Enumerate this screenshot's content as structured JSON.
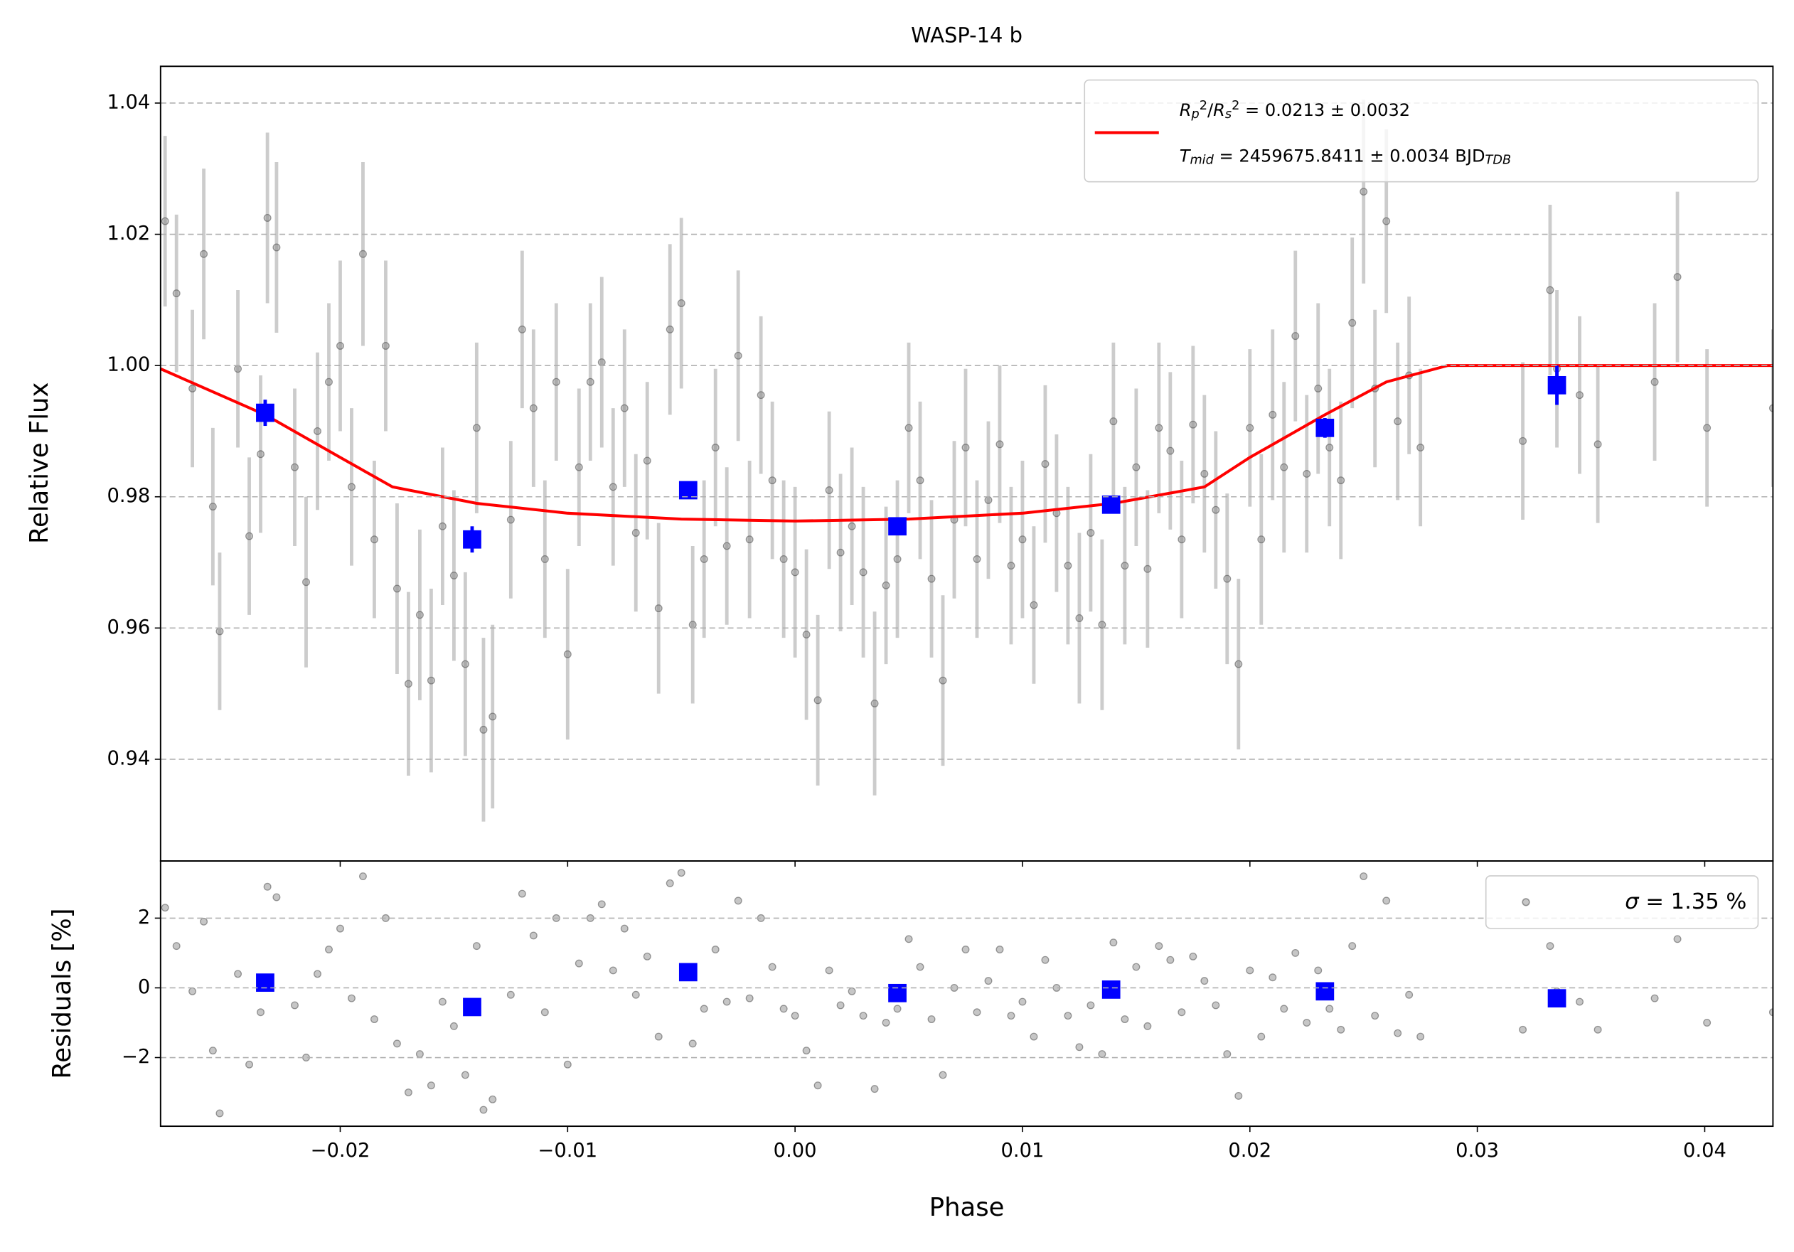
{
  "chart_data": [
    {
      "type": "scatter",
      "title": "WASP-14 b",
      "ylabel": "Relative Flux",
      "xlim": [
        -0.0279,
        0.043
      ],
      "ylim": [
        0.9245,
        1.0456
      ],
      "yticks": [
        0.94,
        0.96,
        0.98,
        {
          "value": 1.0,
          "label": "1.00"
        },
        1.02,
        1.04
      ],
      "grid": true,
      "legend": "upper right",
      "data": {
        "color": "#808080",
        "x": [
          -0.0277,
          -0.0272,
          -0.0265,
          -0.026,
          -0.0256,
          -0.0253,
          -0.0245,
          -0.024,
          -0.0235,
          -0.0232,
          -0.0228,
          -0.022,
          -0.0215,
          -0.021,
          -0.0205,
          -0.02,
          -0.0195,
          -0.019,
          -0.0185,
          -0.018,
          -0.0175,
          -0.017,
          -0.0165,
          -0.016,
          -0.0155,
          -0.015,
          -0.0145,
          -0.014,
          -0.0137,
          -0.0133,
          -0.0125,
          -0.012,
          -0.0115,
          -0.011,
          -0.0105,
          -0.01,
          -0.0095,
          -0.009,
          -0.0085,
          -0.008,
          -0.0075,
          -0.007,
          -0.0065,
          -0.006,
          -0.0055,
          -0.005,
          -0.0045,
          -0.004,
          -0.0035,
          -0.003,
          -0.0025,
          -0.002,
          -0.0015,
          -0.001,
          -0.0005,
          0.0,
          0.0005,
          0.001,
          0.0015,
          0.002,
          0.0025,
          0.003,
          0.0035,
          0.004,
          0.0045,
          0.005,
          0.0055,
          0.006,
          0.0065,
          0.007,
          0.0075,
          0.008,
          0.0085,
          0.009,
          0.0095,
          0.01,
          0.0105,
          0.011,
          0.0115,
          0.012,
          0.0125,
          0.013,
          0.0135,
          0.014,
          0.0145,
          0.015,
          0.0155,
          0.016,
          0.0165,
          0.017,
          0.0175,
          0.018,
          0.0185,
          0.019,
          0.0195,
          0.02,
          0.0205,
          0.021,
          0.0215,
          0.022,
          0.0225,
          0.023,
          0.0235,
          0.024,
          0.0245,
          0.025,
          0.0255,
          0.026,
          0.0265,
          0.027,
          0.0275,
          0.032,
          0.0332,
          0.0335,
          0.0345,
          0.0353,
          0.0378,
          0.0388,
          0.0401,
          0.043
        ],
        "values": [
          1.022,
          1.011,
          0.9965,
          1.017,
          0.9785,
          0.9595,
          0.9995,
          0.974,
          0.9865,
          1.0225,
          1.018,
          0.9845,
          0.967,
          0.99,
          0.9975,
          1.003,
          0.9815,
          1.017,
          0.9735,
          1.003,
          0.966,
          0.9515,
          0.962,
          0.952,
          0.9755,
          0.968,
          0.9545,
          0.9905,
          0.9445,
          0.9465,
          0.9765,
          1.0055,
          0.9935,
          0.9705,
          0.9975,
          0.956,
          0.9845,
          0.9975,
          1.0005,
          0.9815,
          0.9935,
          0.9745,
          0.9855,
          0.963,
          1.0055,
          1.0095,
          0.9605,
          0.9705,
          0.9875,
          0.9725,
          1.0015,
          0.9735,
          0.9955,
          0.9825,
          0.9705,
          0.9685,
          0.959,
          0.949,
          0.981,
          0.9715,
          0.9755,
          0.9685,
          0.9485,
          0.9665,
          0.9705,
          0.9905,
          0.9825,
          0.9675,
          0.952,
          0.9765,
          0.9875,
          0.9705,
          0.9795,
          0.988,
          0.9695,
          0.9735,
          0.9635,
          0.985,
          0.9775,
          0.9695,
          0.9615,
          0.9745,
          0.9605,
          0.9915,
          0.9695,
          0.9845,
          0.969,
          0.9905,
          0.987,
          0.9735,
          0.991,
          0.9835,
          0.978,
          0.9675,
          0.9545,
          0.9905,
          0.9735,
          0.9925,
          0.9845,
          1.0045,
          0.9835,
          0.9965,
          0.9875,
          0.9825,
          1.0065,
          1.0265,
          0.9965,
          1.022,
          0.9915,
          0.9985,
          0.9875,
          0.9885,
          1.0115,
          0.9995,
          0.9955,
          0.988,
          0.9975,
          1.0135,
          0.9905,
          0.9935
        ],
        "errors": [
          0.013,
          0.012,
          0.012,
          0.013,
          0.012,
          0.012,
          0.012,
          0.012,
          0.012,
          0.013,
          0.013,
          0.012,
          0.013,
          0.012,
          0.012,
          0.013,
          0.012,
          0.014,
          0.012,
          0.013,
          0.013,
          0.014,
          0.013,
          0.014,
          0.012,
          0.013,
          0.014,
          0.013,
          0.014,
          0.014,
          0.012,
          0.012,
          0.012,
          0.012,
          0.012,
          0.013,
          0.012,
          0.012,
          0.013,
          0.012,
          0.012,
          0.012,
          0.012,
          0.013,
          0.013,
          0.013,
          0.012,
          0.012,
          0.012,
          0.012,
          0.013,
          0.012,
          0.012,
          0.012,
          0.012,
          0.013,
          0.013,
          0.013,
          0.012,
          0.012,
          0.012,
          0.013,
          0.014,
          0.012,
          0.012,
          0.013,
          0.012,
          0.012,
          0.013,
          0.012,
          0.012,
          0.012,
          0.012,
          0.012,
          0.012,
          0.012,
          0.012,
          0.012,
          0.012,
          0.012,
          0.013,
          0.012,
          0.013,
          0.012,
          0.012,
          0.012,
          0.012,
          0.013,
          0.012,
          0.012,
          0.012,
          0.012,
          0.012,
          0.013,
          0.013,
          0.012,
          0.013,
          0.013,
          0.013,
          0.013,
          0.012,
          0.013,
          0.012,
          0.012,
          0.013,
          0.014,
          0.012,
          0.014,
          0.012,
          0.012,
          0.012,
          0.012,
          0.013,
          0.012,
          0.012,
          0.012,
          0.012,
          0.013,
          0.012,
          0.012
        ]
      },
      "binned": {
        "color": "#0000ff",
        "x": [
          -0.0233,
          -0.0142,
          -0.0047,
          0.0045,
          0.0139,
          0.0233,
          0.0335
        ],
        "values": [
          0.9928,
          0.9735,
          0.981,
          0.9755,
          0.9788,
          0.9905,
          0.997
        ],
        "errors": [
          0.002,
          0.002,
          0.001,
          0.001,
          0.001,
          0.0015,
          0.003
        ]
      },
      "model": {
        "color": "#ff0000",
        "x": [
          -0.0279,
          -0.0233,
          -0.02,
          -0.0177,
          -0.014,
          -0.01,
          -0.005,
          0.0,
          0.005,
          0.01,
          0.014,
          0.018,
          0.02,
          0.0233,
          0.026,
          0.0287,
          0.043
        ],
        "values": [
          0.9995,
          0.9925,
          0.986,
          0.9815,
          0.979,
          0.9775,
          0.9766,
          0.9763,
          0.9766,
          0.9775,
          0.979,
          0.9815,
          0.986,
          0.9925,
          0.9975,
          1.0,
          1.0
        ],
        "label": [
          [
            {
              "t": "R",
              "style": "i"
            },
            {
              "t": "p",
              "style": "sub"
            },
            {
              "t": "2",
              "style": "sup"
            },
            {
              "t": "/",
              "style": "n"
            },
            {
              "t": "R",
              "style": "i"
            },
            {
              "t": "s",
              "style": "sub"
            },
            {
              "t": "2",
              "style": "sup"
            },
            {
              "t": " = 0.0213 ± 0.0032",
              "style": "n"
            }
          ],
          [
            {
              "t": "T",
              "style": "i"
            },
            {
              "t": "mid",
              "style": "isub"
            },
            {
              "t": " = 2459675.8411 ± 0.0034 BJD",
              "style": "n"
            },
            {
              "t": "TDB",
              "style": "isub"
            }
          ]
        ]
      }
    },
    {
      "type": "scatter",
      "ylabel": "Residuals [%]",
      "xlabel": "Phase",
      "xlim": [
        -0.0279,
        0.043
      ],
      "ylim": [
        -3.97,
        3.64
      ],
      "xticks": [
        {
          "value": -0.02,
          "label": "−0.02"
        },
        {
          "value": -0.01,
          "label": "−0.01"
        },
        {
          "value": 0.0,
          "label": "0.00"
        },
        0.01,
        0.02,
        0.03,
        0.04
      ],
      "yticks": [
        {
          "value": -2,
          "label": "−2"
        },
        0,
        2
      ],
      "grid": true,
      "legend": "upper right",
      "data": {
        "color": "#808080",
        "label": [
          {
            "t": "σ",
            "style": "i"
          },
          {
            "t": " = 1.35 %",
            "style": "n"
          }
        ],
        "x": [
          -0.0277,
          -0.0272,
          -0.0265,
          -0.026,
          -0.0256,
          -0.0253,
          -0.0245,
          -0.024,
          -0.0235,
          -0.0232,
          -0.0228,
          -0.022,
          -0.0215,
          -0.021,
          -0.0205,
          -0.02,
          -0.0195,
          -0.019,
          -0.0185,
          -0.018,
          -0.0175,
          -0.017,
          -0.0165,
          -0.016,
          -0.0155,
          -0.015,
          -0.0145,
          -0.014,
          -0.0137,
          -0.0133,
          -0.0125,
          -0.012,
          -0.0115,
          -0.011,
          -0.0105,
          -0.01,
          -0.0095,
          -0.009,
          -0.0085,
          -0.008,
          -0.0075,
          -0.007,
          -0.0065,
          -0.006,
          -0.0055,
          -0.005,
          -0.0045,
          -0.004,
          -0.0035,
          -0.003,
          -0.0025,
          -0.002,
          -0.0015,
          -0.001,
          -0.0005,
          0.0,
          0.0005,
          0.001,
          0.0015,
          0.002,
          0.0025,
          0.003,
          0.0035,
          0.004,
          0.0045,
          0.005,
          0.0055,
          0.006,
          0.0065,
          0.007,
          0.0075,
          0.008,
          0.0085,
          0.009,
          0.0095,
          0.01,
          0.0105,
          0.011,
          0.0115,
          0.012,
          0.0125,
          0.013,
          0.0135,
          0.014,
          0.0145,
          0.015,
          0.0155,
          0.016,
          0.0165,
          0.017,
          0.0175,
          0.018,
          0.0185,
          0.019,
          0.0195,
          0.02,
          0.0205,
          0.021,
          0.0215,
          0.022,
          0.0225,
          0.023,
          0.0235,
          0.024,
          0.0245,
          0.025,
          0.0255,
          0.026,
          0.0265,
          0.027,
          0.0275,
          0.032,
          0.0332,
          0.0335,
          0.0345,
          0.0353,
          0.0378,
          0.0388,
          0.0401,
          0.043
        ],
        "values": [
          2.3,
          1.2,
          -0.1,
          1.9,
          -1.8,
          -3.6,
          0.4,
          -2.2,
          -0.7,
          2.9,
          2.6,
          -0.5,
          -2.0,
          0.4,
          1.1,
          1.7,
          -0.3,
          3.2,
          -0.9,
          2.0,
          -1.6,
          -3.0,
          -1.9,
          -2.8,
          -0.4,
          -1.1,
          -2.5,
          1.2,
          -3.5,
          -3.2,
          -0.2,
          2.7,
          1.5,
          -0.7,
          2.0,
          -2.2,
          0.7,
          2.0,
          2.4,
          0.5,
          1.7,
          -0.2,
          0.9,
          -1.4,
          3.0,
          3.3,
          -1.6,
          -0.6,
          1.1,
          -0.4,
          2.5,
          -0.3,
          2.0,
          0.6,
          -0.6,
          -0.8,
          -1.8,
          -2.8,
          0.5,
          -0.5,
          -0.1,
          -0.8,
          -2.9,
          -1.0,
          -0.6,
          1.4,
          0.6,
          -0.9,
          -2.5,
          0.0,
          1.1,
          -0.7,
          0.2,
          1.1,
          -0.8,
          -0.4,
          -1.4,
          0.8,
          0.0,
          -0.8,
          -1.7,
          -0.5,
          -1.9,
          1.3,
          -0.9,
          0.6,
          -1.1,
          1.2,
          0.8,
          -0.7,
          0.9,
          0.2,
          -0.5,
          -1.9,
          -3.1,
          0.5,
          -1.4,
          0.3,
          -0.6,
          1.0,
          -1.0,
          0.5,
          -0.6,
          -1.2,
          1.2,
          3.2,
          -0.8,
          2.5,
          -1.3,
          -0.2,
          -1.4,
          -1.2,
          1.2,
          -0.1,
          -0.4,
          -1.2,
          -0.3,
          1.4,
          -1.0,
          -0.7
        ]
      },
      "binned": {
        "color": "#0000ff",
        "x": [
          -0.0233,
          -0.0142,
          -0.0047,
          0.0045,
          0.0139,
          0.0233,
          0.0335
        ],
        "values": [
          0.15,
          -0.55,
          0.45,
          -0.15,
          -0.05,
          -0.1,
          -0.3
        ]
      }
    }
  ]
}
